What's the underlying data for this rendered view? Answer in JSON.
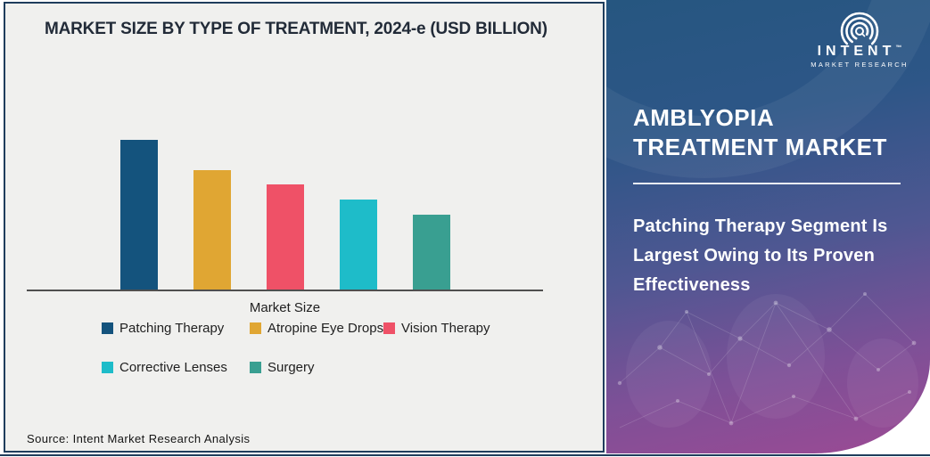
{
  "chart_panel": {
    "title": "MARKET SIZE BY TYPE OF TREATMENT, 2024-e (USD BILLION)",
    "source_note": "Source: Intent Market Research Analysis"
  },
  "chart_data": {
    "type": "bar",
    "title": "MARKET SIZE BY TYPE OF TREATMENT, 2024-e (USD BILLION)",
    "xlabel": "Market Size",
    "ylabel": "",
    "unit": "USD Billion",
    "categories": [
      "Patching Therapy",
      "Atropine Eye Drops",
      "Vision Therapy",
      "Corrective Lenses",
      "Surgery"
    ],
    "values": [
      1.0,
      0.8,
      0.7,
      0.6,
      0.5
    ],
    "values_note": "No numeric axis or data labels are shown in the figure; values are relative bar heights with the tallest bar = 1.0",
    "colors": [
      "#14537D",
      "#E0A633",
      "#EF5167",
      "#1EBCC9",
      "#399F91"
    ],
    "legend_rows": [
      [
        "Patching Therapy",
        "Atropine Eye Drops",
        "Vision Therapy"
      ],
      [
        "Corrective Lenses",
        "Surgery"
      ]
    ],
    "legend_position": "bottom",
    "grid": false,
    "value_axis_visible": false
  },
  "side_panel": {
    "logo": {
      "brand": "INTENT",
      "tm": "™",
      "subtitle": "MARKET RESEARCH"
    },
    "title_line1": "AMBLYOPIA",
    "title_line2": "TREATMENT MARKET",
    "description": "Patching Therapy Segment Is Largest Owing to Its Proven Effectiveness"
  },
  "colors": {
    "chart_bg": "#F0F0EE",
    "frame_border": "#1F3D5C",
    "title_text": "#222B38",
    "axis_line": "#4F4F4F",
    "legend_text": "#1F1F1F",
    "panel_gradient_top": "#265680",
    "panel_gradient_bottom": "#9C4A94",
    "panel_text": "#FFFFFF"
  }
}
